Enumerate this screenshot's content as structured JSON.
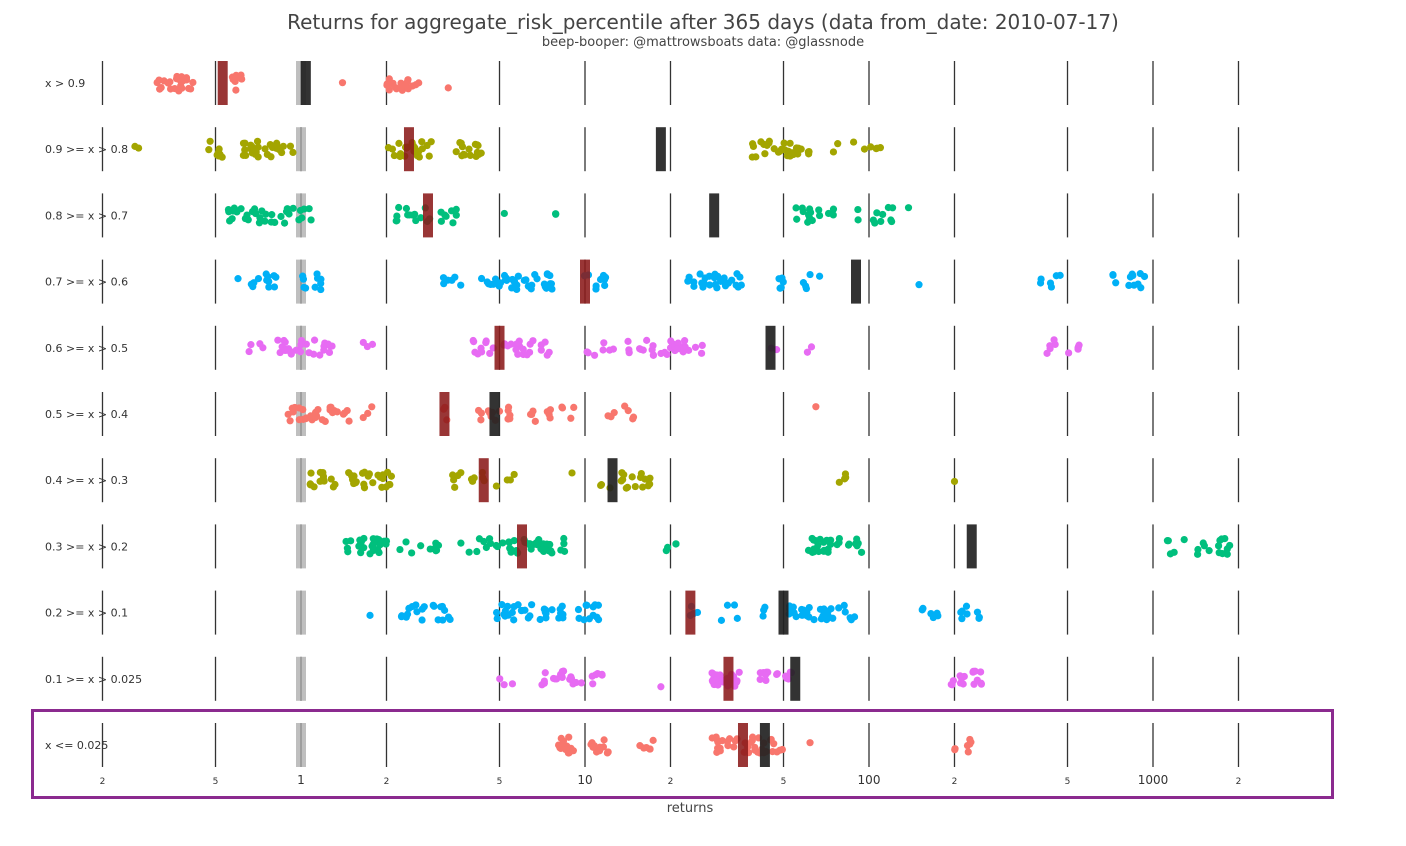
{
  "chart_data": {
    "type": "scatter",
    "title": "Returns for aggregate_risk_percentile after 365 days (data from_date: 2010-07-17)",
    "subtitle": "beep-booper: @mattrowsboats data: @glassnode",
    "xlabel": "returns",
    "x_scale": "log",
    "xlim": [
      0.18,
      2100
    ],
    "x_tick_labels": [
      {
        "value": 0.2,
        "label": "2"
      },
      {
        "value": 0.5,
        "label": "5"
      },
      {
        "value": 1,
        "label": "1"
      },
      {
        "value": 2,
        "label": "2"
      },
      {
        "value": 5,
        "label": "5"
      },
      {
        "value": 10,
        "label": "10"
      },
      {
        "value": 20,
        "label": "2"
      },
      {
        "value": 50,
        "label": "5"
      },
      {
        "value": 100,
        "label": "100"
      },
      {
        "value": 200,
        "label": "2"
      },
      {
        "value": 500,
        "label": "5"
      },
      {
        "value": 1000,
        "label": "1000"
      },
      {
        "value": 2000,
        "label": "2"
      }
    ],
    "gridlines": [
      0.2,
      0.5,
      1,
      2,
      5,
      10,
      20,
      50,
      100,
      200,
      500,
      1000,
      2000
    ],
    "reference_line": 1,
    "highlight_row": "x <= 0.025",
    "highlight_color": "#8b2a8f",
    "median_color": "#8b1a1a",
    "mean_color": "#222222",
    "series": [
      {
        "category": "x > 0.9",
        "color": "#f8766d",
        "median": 0.53,
        "mean": 1.04,
        "clusters": [
          [
            0.3,
            0.42,
            26
          ],
          [
            0.55,
            0.65,
            8
          ],
          [
            1.4,
            1.4,
            1
          ],
          [
            2.0,
            2.6,
            20
          ],
          [
            3.3,
            3.3,
            1
          ]
        ]
      },
      {
        "category": "0.9 >= x > 0.8",
        "color": "#a3a500",
        "median": 2.4,
        "mean": 18.5,
        "clusters": [
          [
            0.26,
            0.28,
            2
          ],
          [
            0.45,
            0.55,
            8
          ],
          [
            0.6,
            0.95,
            28
          ],
          [
            2.0,
            2.9,
            24
          ],
          [
            3.5,
            4.4,
            16
          ],
          [
            38,
            62,
            30
          ],
          [
            74,
            110,
            8
          ]
        ]
      },
      {
        "category": "0.8 >= x > 0.7",
        "color": "#00bf7d",
        "median": 2.8,
        "mean": 28.5,
        "clusters": [
          [
            0.55,
            1.15,
            35
          ],
          [
            2.0,
            3.6,
            22
          ],
          [
            5.2,
            5.2,
            1
          ],
          [
            7.8,
            8.2,
            2
          ],
          [
            47,
            68,
            12
          ],
          [
            72,
            80,
            3
          ],
          [
            88,
            150,
            12
          ]
        ]
      },
      {
        "category": "0.7 >= x > 0.6",
        "color": "#00b0f6",
        "median": 10,
        "mean": 90,
        "clusters": [
          [
            0.6,
            0.6,
            1
          ],
          [
            0.65,
            0.85,
            12
          ],
          [
            0.98,
            1.2,
            10
          ],
          [
            3.0,
            3.7,
            6
          ],
          [
            4.3,
            7.7,
            40
          ],
          [
            9.8,
            12,
            10
          ],
          [
            23,
            36,
            28
          ],
          [
            48,
            70,
            10
          ],
          [
            150,
            150,
            1
          ],
          [
            400,
            480,
            6
          ],
          [
            720,
            980,
            12
          ]
        ]
      },
      {
        "category": "0.6 >= x > 0.5",
        "color": "#e76bf3",
        "median": 5.0,
        "mean": 45,
        "clusters": [
          [
            0.65,
            0.75,
            4
          ],
          [
            0.8,
            1.3,
            30
          ],
          [
            1.6,
            1.8,
            3
          ],
          [
            4.0,
            7.5,
            30
          ],
          [
            10,
            14.5,
            10
          ],
          [
            15.5,
            27,
            30
          ],
          [
            44,
            48,
            2
          ],
          [
            55,
            65,
            2
          ],
          [
            420,
            560,
            10
          ]
        ]
      },
      {
        "category": "0.5 >= x > 0.4",
        "color": "#f8766d",
        "median": 3.2,
        "mean": 4.8,
        "clusters": [
          [
            0.9,
            1.5,
            30
          ],
          [
            1.6,
            1.8,
            3
          ],
          [
            3.1,
            3.3,
            3
          ],
          [
            4.1,
            5.5,
            14
          ],
          [
            6.4,
            7.6,
            8
          ],
          [
            8.2,
            10,
            4
          ],
          [
            12,
            15,
            7
          ],
          [
            65,
            65,
            1
          ]
        ]
      },
      {
        "category": "0.4 >= x > 0.3",
        "color": "#a3a500",
        "median": 4.4,
        "mean": 12.5,
        "clusters": [
          [
            1.05,
            2.2,
            40
          ],
          [
            3.4,
            5.0,
            12
          ],
          [
            5.2,
            5.9,
            3
          ],
          [
            9.0,
            9.0,
            1
          ],
          [
            11,
            12.5,
            3
          ],
          [
            13,
            17,
            16
          ],
          [
            78,
            85,
            4
          ],
          [
            200,
            200,
            1
          ]
        ]
      },
      {
        "category": "0.3 >= x > 0.2",
        "color": "#00bf7d",
        "median": 6.0,
        "mean": 230,
        "clusters": [
          [
            1.4,
            2.0,
            28
          ],
          [
            2.1,
            3.3,
            10
          ],
          [
            3.6,
            4.5,
            6
          ],
          [
            4.6,
            8.5,
            40
          ],
          [
            19,
            21,
            4
          ],
          [
            60,
            95,
            30
          ],
          [
            1100,
            1300,
            5
          ],
          [
            1350,
            1950,
            14
          ]
        ]
      },
      {
        "category": "0.2 >= x > 0.1",
        "color": "#00b0f6",
        "median": 23.5,
        "mean": 50,
        "clusters": [
          [
            1.75,
            1.75,
            1
          ],
          [
            2.2,
            3.4,
            20
          ],
          [
            4.8,
            8.5,
            32
          ],
          [
            9.2,
            12,
            12
          ],
          [
            23,
            25,
            4
          ],
          [
            30,
            35,
            4
          ],
          [
            40,
            45,
            3
          ],
          [
            52,
            90,
            36
          ],
          [
            150,
            180,
            6
          ],
          [
            200,
            250,
            8
          ]
        ]
      },
      {
        "category": "0.1 >= x > 0.025",
        "color": "#e76bf3",
        "median": 32,
        "mean": 55,
        "clusters": [
          [
            5.0,
            5.6,
            3
          ],
          [
            7.0,
            9.8,
            18
          ],
          [
            10.5,
            11.5,
            6
          ],
          [
            18.5,
            18.5,
            1
          ],
          [
            28,
            35,
            40
          ],
          [
            40,
            55,
            14
          ],
          [
            190,
            250,
            16
          ]
        ]
      },
      {
        "category": "x <= 0.025",
        "color": "#f8766d",
        "median": 36,
        "mean": 43,
        "clusters": [
          [
            8.0,
            9.5,
            14
          ],
          [
            10.5,
            12.5,
            12
          ],
          [
            15.5,
            17.5,
            6
          ],
          [
            28,
            50,
            40
          ],
          [
            62,
            62,
            1
          ],
          [
            200,
            230,
            7
          ]
        ]
      }
    ]
  }
}
